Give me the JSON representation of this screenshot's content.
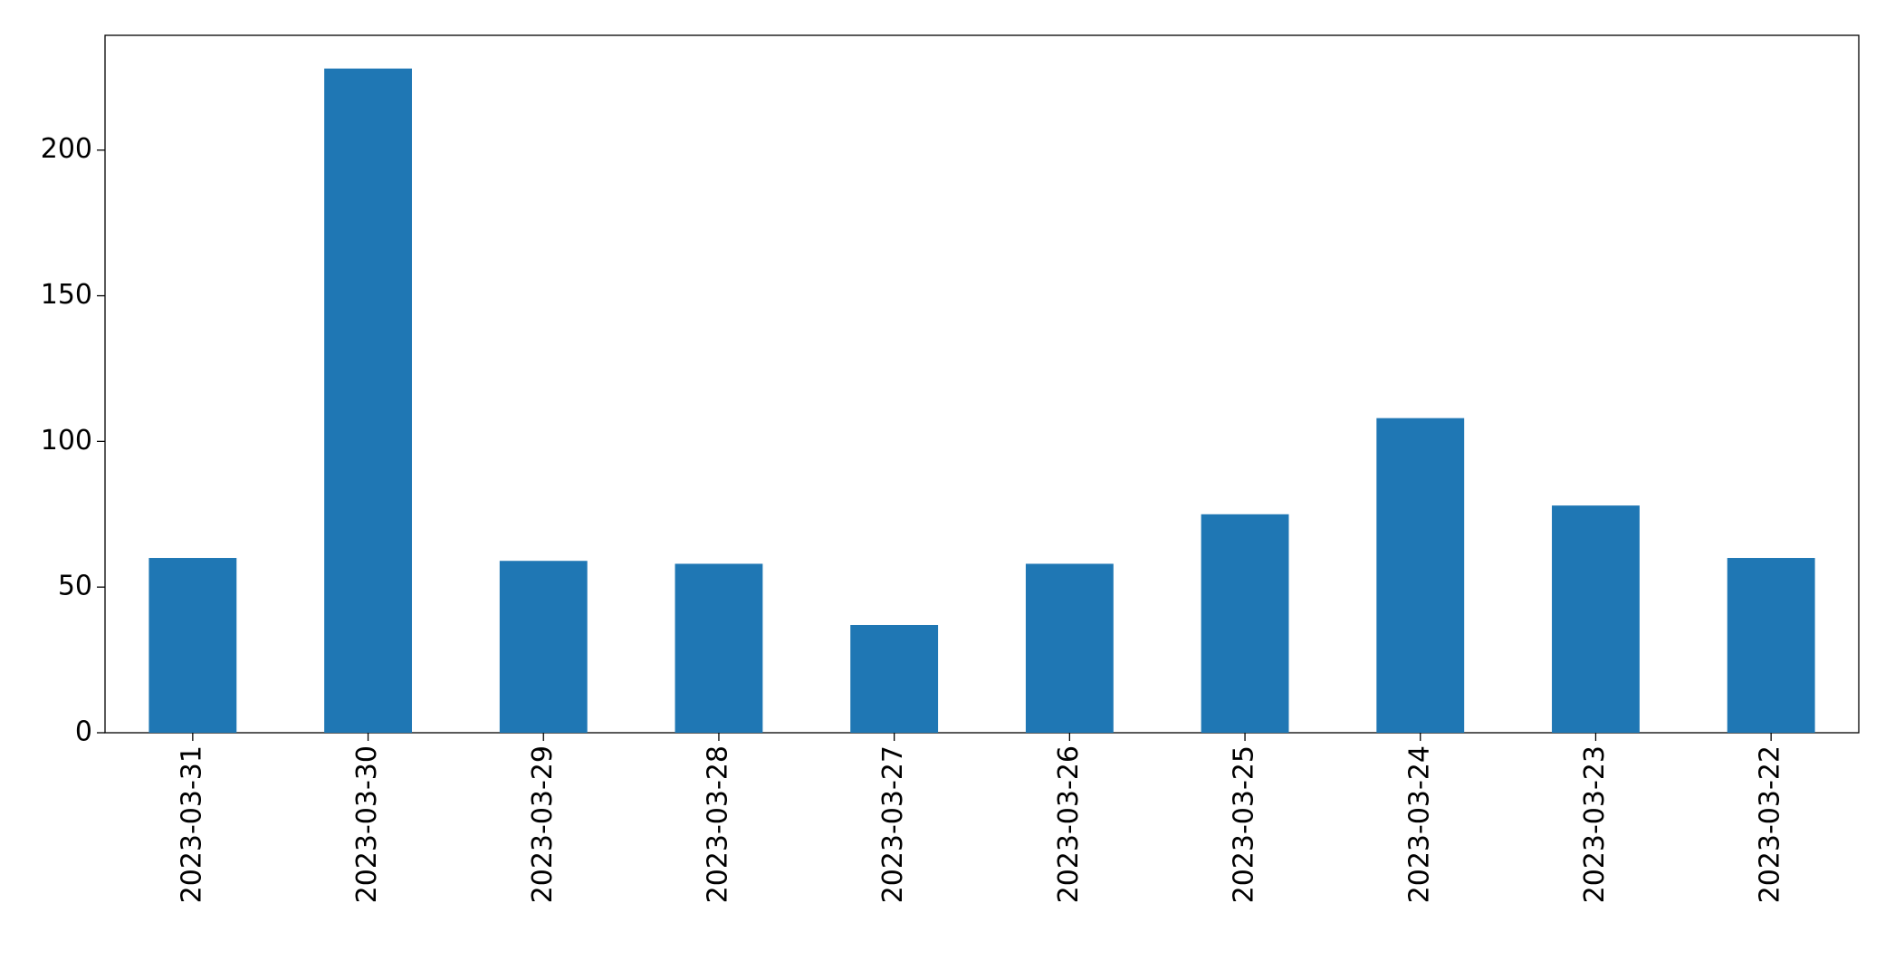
{
  "chart_data": {
    "type": "bar",
    "categories": [
      "2023-03-31",
      "2023-03-30",
      "2023-03-29",
      "2023-03-28",
      "2023-03-27",
      "2023-03-26",
      "2023-03-25",
      "2023-03-24",
      "2023-03-23",
      "2023-03-22"
    ],
    "values": [
      60,
      228,
      59,
      58,
      37,
      58,
      75,
      108,
      78,
      60
    ],
    "color": "#1f77b4",
    "ylim": [
      0,
      239.4
    ],
    "yticks": [
      0,
      50,
      100,
      150,
      200
    ],
    "grid": false
  }
}
